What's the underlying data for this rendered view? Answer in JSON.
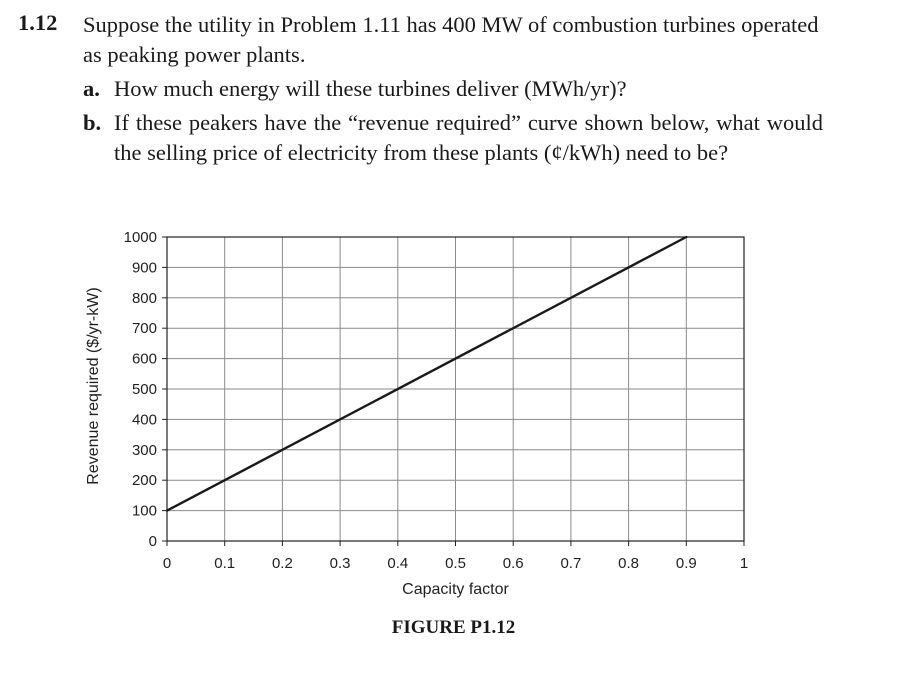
{
  "problem": {
    "number": "1.12",
    "intro": "Suppose the utility in Problem 1.11 has 400 MW of combustion turbines operated as peaking power plants.",
    "parts": [
      {
        "label": "a.",
        "text": "How much energy will these turbines deliver (MWh/yr)?"
      },
      {
        "label": "b.",
        "text": "If these peakers have the “revenue required” curve shown below, what would the selling price of electricity from these plants (¢/kWh) need to be?"
      }
    ]
  },
  "chart_data": {
    "type": "line",
    "xlabel": "Capacity factor",
    "ylabel": "Revenue required ($/yr-kW)",
    "xlim": [
      0,
      1
    ],
    "ylim": [
      0,
      1000
    ],
    "x_ticks": [
      "0",
      "0.1",
      "0.2",
      "0.3",
      "0.4",
      "0.5",
      "0.6",
      "0.7",
      "0.8",
      "0.9",
      "1"
    ],
    "y_ticks": [
      "0",
      "100",
      "200",
      "300",
      "400",
      "500",
      "600",
      "700",
      "800",
      "900",
      "1000"
    ],
    "grid": true,
    "series": [
      {
        "x": [
          0,
          0.9
        ],
        "y": [
          100,
          1000
        ]
      }
    ]
  },
  "figure_caption": "FIGURE P1.12"
}
